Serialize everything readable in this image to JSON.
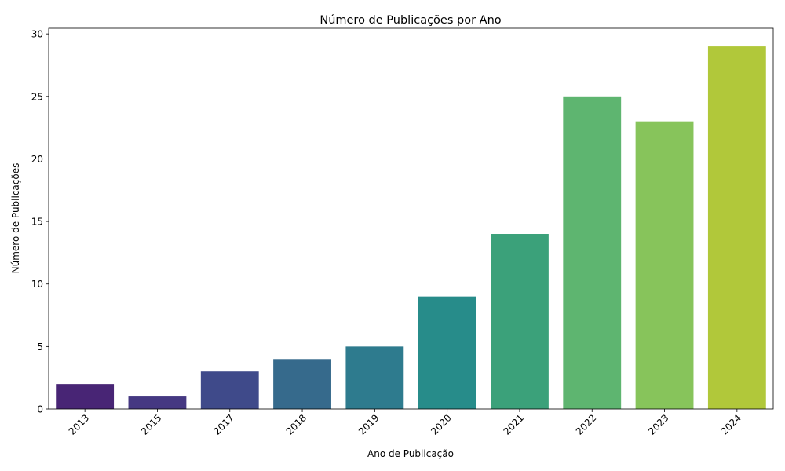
{
  "chart_data": {
    "type": "bar",
    "title": "Número de Publicações por Ano",
    "xlabel": "Ano de Publicação",
    "ylabel": "Número de Publicações",
    "categories": [
      "2013",
      "2015",
      "2017",
      "2018",
      "2019",
      "2020",
      "2021",
      "2022",
      "2023",
      "2024"
    ],
    "values": [
      2,
      1,
      3,
      4,
      5,
      9,
      14,
      25,
      23,
      29
    ],
    "colors": [
      "#482575",
      "#453882",
      "#3f4a8a",
      "#366a8c",
      "#2e7b8e",
      "#278c8a",
      "#3ba17a",
      "#5eb570",
      "#87c45b",
      "#b1c83a"
    ],
    "ylim": [
      0,
      30.45
    ],
    "yticks": [
      0,
      5,
      10,
      15,
      20,
      25,
      30
    ],
    "grid": false,
    "xtick_rotation": 45
  }
}
